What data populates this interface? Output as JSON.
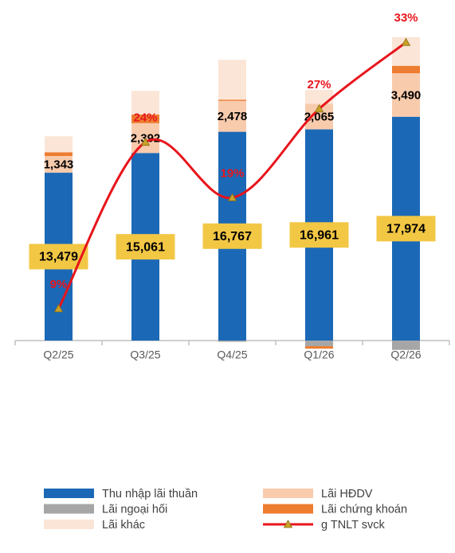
{
  "chart_data": {
    "type": "bar",
    "stacked": true,
    "categories": [
      "Q2/25",
      "Q3/25",
      "Q4/25",
      "Q1/26",
      "Q2/26"
    ],
    "ylim": [
      -1000,
      26000
    ],
    "y2lim": [
      5,
      35.3
    ],
    "series": [
      {
        "name": "Thu nhập lãi thuần",
        "color": "#1b69b6",
        "values": [
          13479,
          15061,
          16767,
          16961,
          17974
        ],
        "value_labels": [
          "13,479",
          "15,061",
          "16,767",
          "16,961",
          "17,974"
        ]
      },
      {
        "name": "Lãi HĐDV",
        "color": "#f8cbad",
        "values": [
          1343,
          2392,
          2478,
          2065,
          3490
        ],
        "value_labels": [
          "1,343",
          "2,392",
          "2,478",
          "2,065",
          "3,490"
        ]
      },
      {
        "name": "Lãi ngoại hối",
        "color": "#a6a6a6",
        "values": [
          0,
          0,
          -100,
          -450,
          -750
        ]
      },
      {
        "name": "Lãi chứng khoán",
        "color": "#ed7d31",
        "values": [
          300,
          700,
          100,
          -200,
          600
        ]
      },
      {
        "name": "Lãi khác",
        "color": "#fbe5d6",
        "values": [
          1280,
          1900,
          3200,
          1100,
          2300
        ]
      },
      {
        "name": "g TNLT svck",
        "type": "line",
        "axis": "y2",
        "color": "#e8141b",
        "marker_color": "#c9a227",
        "values": [
          9,
          24,
          19,
          27,
          33
        ],
        "value_labels": [
          "9%",
          "24%",
          "19%",
          "27%",
          "33%"
        ]
      }
    ]
  }
}
